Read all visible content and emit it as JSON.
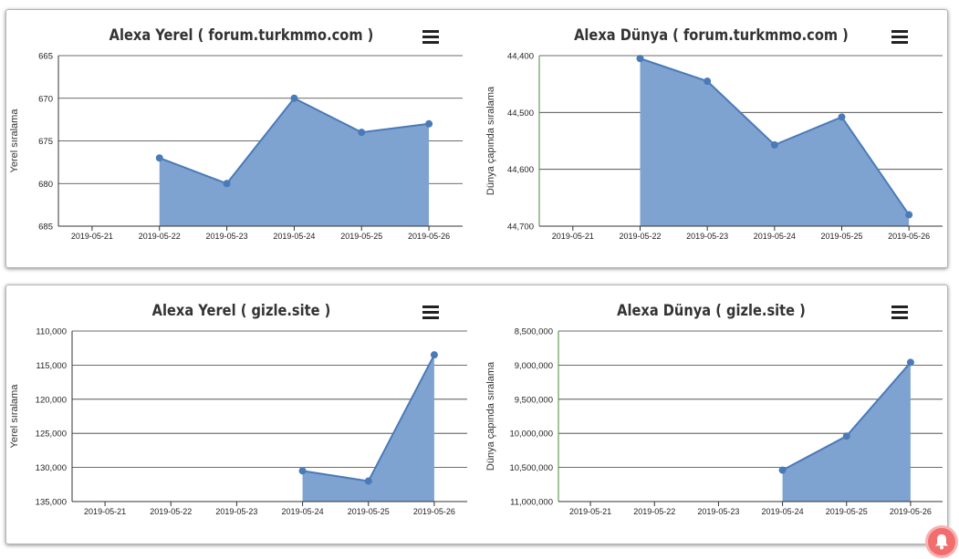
{
  "chart_data": [
    {
      "id": "c1",
      "type": "area",
      "title": "Alexa Yerel ( forum.turkmmo.com )",
      "ylabel": "Yerel sıralama",
      "x": [
        "2019-05-21",
        "2019-05-22",
        "2019-05-23",
        "2019-05-24",
        "2019-05-25",
        "2019-05-26"
      ],
      "values": [
        null,
        677,
        680,
        670,
        674,
        673
      ],
      "ylim": [
        665,
        685
      ],
      "yticks": [
        665,
        670,
        675,
        680,
        685
      ],
      "ytick_labels": [
        "665",
        "670",
        "675",
        "680",
        "685"
      ],
      "y_reversed": true,
      "color": "#4a7ab8",
      "fill": "#7fa3d0"
    },
    {
      "id": "c2",
      "type": "area",
      "title": "Alexa Dünya ( forum.turkmmo.com )",
      "ylabel": "Dünya çapında sıralama",
      "x": [
        "2019-05-21",
        "2019-05-22",
        "2019-05-23",
        "2019-05-24",
        "2019-05-25",
        "2019-05-26"
      ],
      "values": [
        null,
        44405,
        44445,
        44557,
        44508,
        44680
      ],
      "ylim": [
        44400,
        44700
      ],
      "yticks": [
        44400,
        44500,
        44600,
        44700
      ],
      "ytick_labels": [
        "44,400",
        "44,500",
        "44,600",
        "44,700"
      ],
      "y_reversed": true,
      "color": "#4a7ab8",
      "fill": "#7fa3d0"
    },
    {
      "id": "c3",
      "type": "area",
      "title": "Alexa Yerel ( gizle.site )",
      "ylabel": "Yerel sıralama",
      "x": [
        "2019-05-21",
        "2019-05-22",
        "2019-05-23",
        "2019-05-24",
        "2019-05-25",
        "2019-05-26"
      ],
      "values": [
        null,
        null,
        null,
        130500,
        132000,
        113500
      ],
      "ylim": [
        110000,
        135000
      ],
      "yticks": [
        110000,
        115000,
        120000,
        125000,
        130000,
        135000
      ],
      "ytick_labels": [
        "110,000",
        "115,000",
        "120,000",
        "125,000",
        "130,000",
        "135,000"
      ],
      "y_reversed": true,
      "color": "#4a7ab8",
      "fill": "#7fa3d0"
    },
    {
      "id": "c4",
      "type": "area",
      "title": "Alexa Dünya ( gizle.site )",
      "ylabel": "Dünya çapında sıralama",
      "x": [
        "2019-05-21",
        "2019-05-22",
        "2019-05-23",
        "2019-05-24",
        "2019-05-25",
        "2019-05-26"
      ],
      "values": [
        null,
        null,
        null,
        10540000,
        10040000,
        8960000
      ],
      "ylim": [
        8500000,
        11000000
      ],
      "yticks": [
        8500000,
        9000000,
        9500000,
        10000000,
        10500000,
        11000000
      ],
      "ytick_labels": [
        "8,500,000",
        "9,000,000",
        "9,500,000",
        "10,000,000",
        "10,500,000",
        "11,000,000"
      ],
      "y_reversed": true,
      "color": "#4a7ab8",
      "fill": "#7fa3d0"
    }
  ],
  "icons": {
    "menu": "hamburger-menu-icon",
    "notification": "bell-icon"
  },
  "colors": {
    "notification_bg": "#f26d6d"
  }
}
